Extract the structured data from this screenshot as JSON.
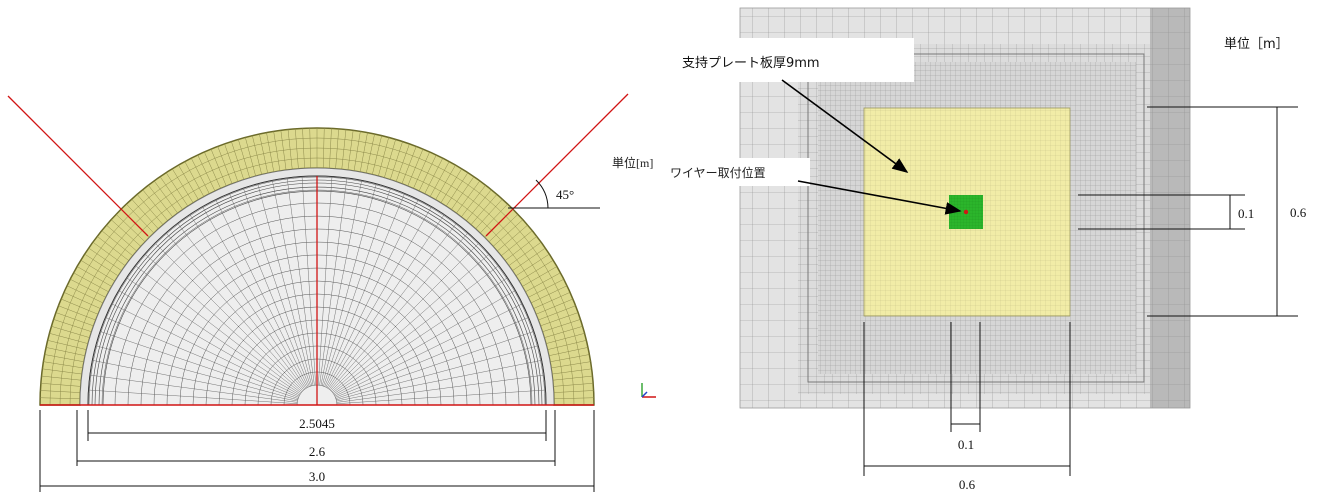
{
  "left_panel": {
    "unit_label": "単位[m]",
    "angle_label": "45°",
    "dimensions": [
      "2.5045",
      "2.6",
      "3.0"
    ]
  },
  "right_panel": {
    "unit_label": "単位［m］",
    "callout_plate": "支持プレート板厚9mm",
    "callout_wire": "ワイヤー取付位置",
    "dimensions": {
      "inner_vertical": "0.1",
      "outer_vertical": "0.6",
      "inner_horizontal": "0.1",
      "outer_horizontal": "0.6"
    }
  },
  "colors": {
    "outer_ring": "#dcd98e",
    "outer_ring_edge": "#6b6a2a",
    "mesh_face": "#ececec",
    "mesh_line": "#555555",
    "red_line": "#d11414",
    "plate_yellow": "#f1eca7",
    "attach_green": "#2bb52b",
    "attach_dark_green": "#1a8e1a",
    "panel_gray": "#c9c9c9",
    "panel_dark_gray": "#9e9e9e"
  }
}
